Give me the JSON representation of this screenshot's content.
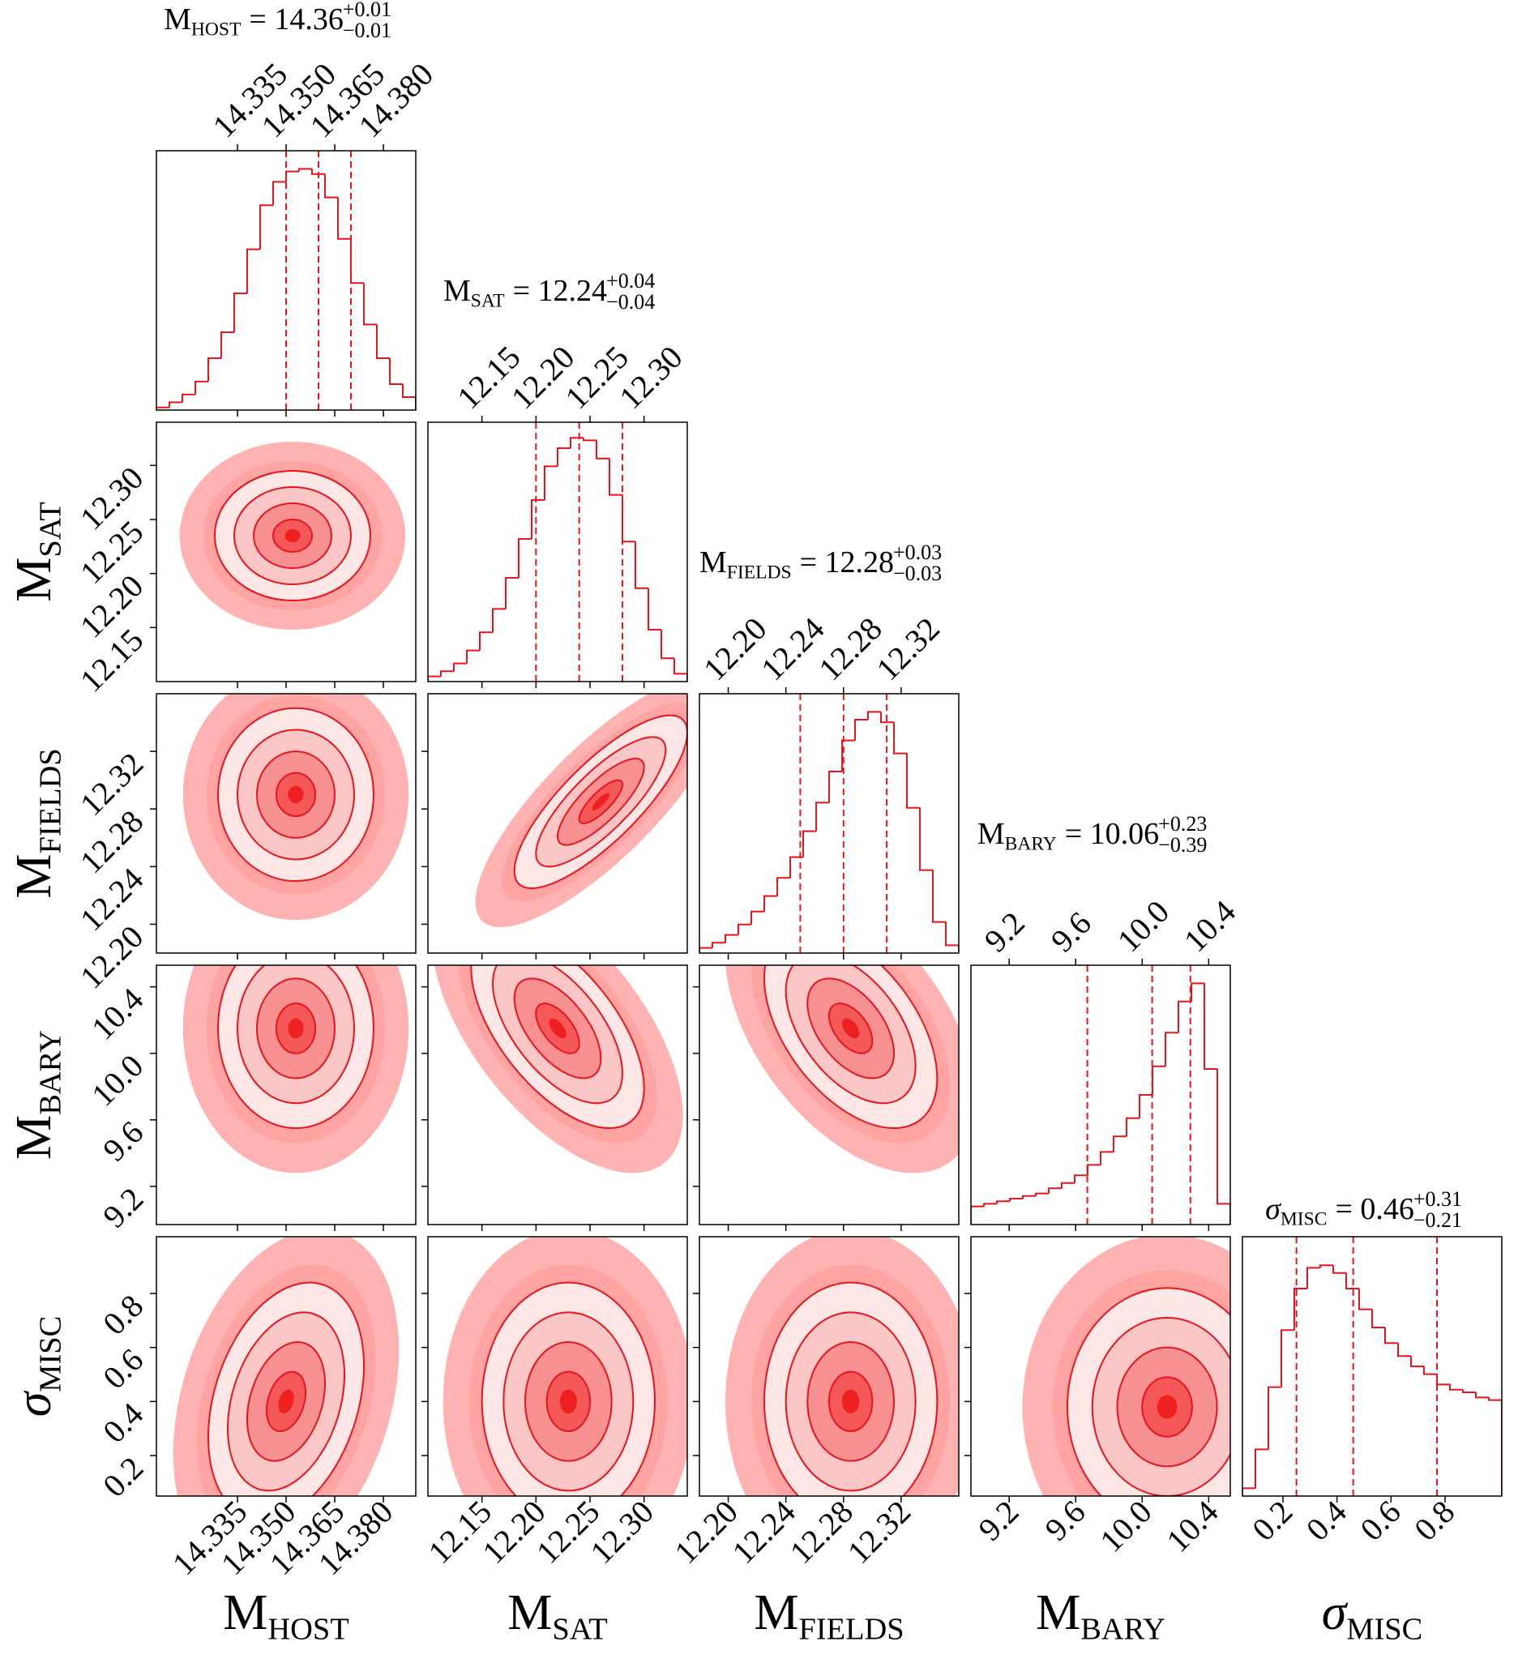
{
  "chart_data": {
    "type": "corner",
    "color": "#e8141c",
    "hist_ylim": [
      0,
      1
    ],
    "params": [
      {
        "symbol": "M",
        "sub": "HOST",
        "title": "= 14.36",
        "plus": "+0.01",
        "minus": "−0.01",
        "lim": [
          14.31,
          14.39
        ],
        "ticks": [
          14.335,
          {
            "value": 14.35,
            "label": "14.350"
          },
          14.365,
          {
            "value": 14.38,
            "label": "14.380"
          }
        ],
        "bins": [
          14.31,
          14.314,
          14.318,
          14.322,
          14.326,
          14.33,
          14.334,
          14.338,
          14.342,
          14.346,
          14.35,
          14.354,
          14.358,
          14.362,
          14.366,
          14.37,
          14.374,
          14.378,
          14.382,
          14.386,
          14.39
        ],
        "values": [
          0.01,
          0.03,
          0.06,
          0.11,
          0.2,
          0.3,
          0.45,
          0.62,
          0.79,
          0.88,
          0.92,
          0.93,
          0.91,
          0.82,
          0.66,
          0.49,
          0.33,
          0.2,
          0.1,
          0.05
        ],
        "quantiles": [
          14.35,
          14.36,
          14.37
        ],
        "pairs": []
      },
      {
        "symbol": "M",
        "sub": "SAT",
        "title": "= 12.24",
        "plus": "+0.04",
        "minus": "−0.04",
        "lim": [
          12.1,
          12.34
        ],
        "ticks": [
          12.15,
          {
            "value": 12.2,
            "label": "12.20"
          },
          12.25,
          {
            "value": 12.3,
            "label": "12.30"
          }
        ],
        "bins": [
          12.1,
          12.112,
          12.124,
          12.136,
          12.148,
          12.16,
          12.172,
          12.184,
          12.196,
          12.208,
          12.22,
          12.232,
          12.244,
          12.256,
          12.268,
          12.28,
          12.292,
          12.304,
          12.316,
          12.328,
          12.34
        ],
        "values": [
          0.02,
          0.04,
          0.07,
          0.12,
          0.19,
          0.28,
          0.4,
          0.55,
          0.7,
          0.83,
          0.9,
          0.94,
          0.93,
          0.86,
          0.72,
          0.54,
          0.36,
          0.2,
          0.09,
          0.03
        ],
        "quantiles": [
          12.2,
          12.24,
          12.28
        ],
        "pairs": [
          {
            "center": [
              14.352,
              12.235
            ],
            "spread": [
              0.012,
              0.03
            ],
            "rho": 0
          }
        ]
      },
      {
        "symbol": "M",
        "sub": "FIELDS",
        "title": "= 12.28",
        "plus": "+0.03",
        "minus": "−0.03",
        "lim": [
          12.18,
          12.36
        ],
        "ticks": [
          {
            "value": 12.2,
            "label": "12.20"
          },
          12.24,
          12.28,
          12.32
        ],
        "bins": [
          12.18,
          12.189,
          12.198,
          12.207,
          12.216,
          12.225,
          12.234,
          12.243,
          12.252,
          12.261,
          12.27,
          12.279,
          12.288,
          12.297,
          12.306,
          12.315,
          12.324,
          12.333,
          12.342,
          12.351,
          12.36
        ],
        "values": [
          0.02,
          0.04,
          0.07,
          0.11,
          0.16,
          0.22,
          0.29,
          0.37,
          0.47,
          0.58,
          0.7,
          0.82,
          0.9,
          0.93,
          0.89,
          0.77,
          0.56,
          0.32,
          0.12,
          0.03
        ],
        "quantiles": [
          12.25,
          12.28,
          12.31
        ],
        "pairs": [
          {
            "center": [
              14.353,
              12.29
            ],
            "spread": [
              0.012,
              0.03
            ],
            "rho": 0
          },
          {
            "center": [
              12.26,
              12.285
            ],
            "spread": [
              0.04,
              0.03
            ],
            "rho": 0.8
          }
        ]
      },
      {
        "symbol": "M",
        "sub": "BARY",
        "title": "= 10.06",
        "plus": "+0.23",
        "minus": "−0.39",
        "lim": [
          8.97,
          10.53
        ],
        "ticks": [
          9.2,
          9.6,
          {
            "value": 10,
            "label": "10.0"
          },
          10.4
        ],
        "bins": [
          8.97,
          9.048,
          9.126,
          9.204,
          9.282,
          9.36,
          9.438,
          9.516,
          9.594,
          9.672,
          9.75,
          9.828,
          9.906,
          9.984,
          10.062,
          10.14,
          10.218,
          10.296,
          10.374,
          10.452,
          10.53
        ],
        "values": [
          0.07,
          0.08,
          0.09,
          0.1,
          0.11,
          0.12,
          0.14,
          0.16,
          0.19,
          0.23,
          0.28,
          0.34,
          0.41,
          0.5,
          0.61,
          0.74,
          0.86,
          0.93,
          0.6,
          0.08
        ],
        "quantiles": [
          9.67,
          10.06,
          10.29
        ],
        "pairs": [
          {
            "center": [
              14.353,
              10.15
            ],
            "spread": [
              0.012,
              0.3
            ],
            "rho": 0
          },
          {
            "center": [
              12.22,
              10.15
            ],
            "spread": [
              0.04,
              0.3
            ],
            "rho": -0.6
          },
          {
            "center": [
              12.285,
              10.15
            ],
            "spread": [
              0.03,
              0.3
            ],
            "rho": -0.5
          }
        ]
      },
      {
        "symbol": "σ",
        "sub": "MISC",
        "title": "= 0.46",
        "plus": "+0.31",
        "minus": "−0.21",
        "lim": [
          0.05,
          1.01
        ],
        "ticks": [
          0.2,
          0.4,
          0.6,
          0.8
        ],
        "bins": [
          0.05,
          0.098,
          0.146,
          0.194,
          0.242,
          0.29,
          0.338,
          0.386,
          0.434,
          0.482,
          0.53,
          0.578,
          0.626,
          0.674,
          0.722,
          0.77,
          0.818,
          0.866,
          0.914,
          0.962,
          1.01
        ],
        "values": [
          0.03,
          0.18,
          0.42,
          0.64,
          0.8,
          0.88,
          0.89,
          0.86,
          0.8,
          0.72,
          0.65,
          0.59,
          0.54,
          0.5,
          0.47,
          0.43,
          0.41,
          0.4,
          0.38,
          0.37
        ],
        "quantiles": [
          0.25,
          0.46,
          0.77
        ],
        "pairs": [
          {
            "center": [
              14.35,
              0.4
            ],
            "spread": [
              0.012,
              0.22
            ],
            "rho": 0.3
          },
          {
            "center": [
              12.23,
              0.4
            ],
            "spread": [
              0.04,
              0.22
            ],
            "rho": 0
          },
          {
            "center": [
              12.285,
              0.4
            ],
            "spread": [
              0.03,
              0.22
            ],
            "rho": 0
          },
          {
            "center": [
              10.15,
              0.38
            ],
            "spread": [
              0.3,
              0.22
            ],
            "rho": 0
          }
        ]
      }
    ]
  }
}
